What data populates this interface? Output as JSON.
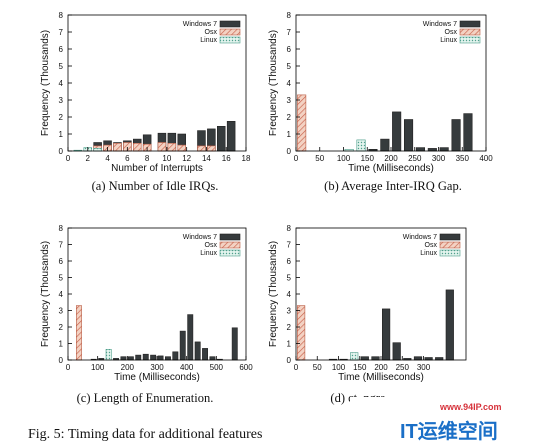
{
  "figure_caption": "Fig. 5: Timing data for additional features",
  "watermark": {
    "url": "www.94IP.com",
    "brand": "IT运维空间"
  },
  "colors": {
    "windows": "#363b3d",
    "osx_fill": "#f3d2c3",
    "osx_stroke": "#c8604a",
    "linux_fill": "#e3f4ee",
    "linux_stroke": "#4f9f8c"
  },
  "chart_data": [
    {
      "type": "bar",
      "caption": "(a) Number of Idle IRQs.",
      "ylabel": "Frequency (Thousands)",
      "xlabel": "Number of Interrupts",
      "ylim": [
        0,
        8
      ],
      "xlim": [
        0,
        18
      ],
      "yticks": [
        "0",
        "1",
        "2",
        "3",
        "4",
        "5",
        "6",
        "7",
        "8"
      ],
      "xticks": [
        "0",
        "2",
        "4",
        "6",
        "8",
        "10",
        "12",
        "14",
        "16",
        "18"
      ],
      "legend": [
        "Windows 7",
        "Osx",
        "Linux"
      ],
      "legend_position": "top-right",
      "series": [
        {
          "name": "Windows 7",
          "points": [
            [
              2,
              0.1
            ],
            [
              3,
              0.5
            ],
            [
              4,
              0.6
            ],
            [
              5,
              0.5
            ],
            [
              6,
              0.6
            ],
            [
              7,
              0.7
            ],
            [
              8,
              0.95
            ],
            [
              9.5,
              1.05
            ],
            [
              10.5,
              1.05
            ],
            [
              11.5,
              1.0
            ],
            [
              13.5,
              1.2
            ],
            [
              14.5,
              1.3
            ],
            [
              15.5,
              1.45
            ],
            [
              16.5,
              1.75
            ]
          ]
        },
        {
          "name": "Osx",
          "points": [
            [
              3,
              0.3
            ],
            [
              4,
              0.35
            ],
            [
              5,
              0.45
            ],
            [
              6,
              0.5
            ],
            [
              7,
              0.45
            ],
            [
              8,
              0.4
            ],
            [
              9.5,
              0.5
            ],
            [
              10.5,
              0.45
            ],
            [
              11.5,
              0.35
            ],
            [
              13.5,
              0.3
            ],
            [
              14.5,
              0.3
            ]
          ]
        },
        {
          "name": "Linux",
          "points": [
            [
              1,
              0.05
            ],
            [
              2,
              0.2
            ],
            [
              3,
              0.15
            ]
          ]
        }
      ]
    },
    {
      "type": "bar",
      "caption": "(b) Average Inter-IRQ Gap.",
      "ylabel": "Frequency (Thousands)",
      "xlabel": "Time (Milliseconds)",
      "ylim": [
        0,
        8
      ],
      "xlim": [
        0,
        400
      ],
      "yticks": [
        "0",
        "1",
        "2",
        "3",
        "4",
        "5",
        "6",
        "7",
        "8"
      ],
      "xticks": [
        "0",
        "50",
        "100",
        "150",
        "200",
        "250",
        "300",
        "350",
        "400"
      ],
      "legend": [
        "Windows 7",
        "Osx",
        "Linux"
      ],
      "legend_position": "top-right",
      "series": [
        {
          "name": "Windows 7",
          "points": [
            [
              162,
              0.1
            ],
            [
              187,
              0.7
            ],
            [
              212,
              2.3
            ],
            [
              237,
              1.85
            ],
            [
              262,
              0.2
            ],
            [
              287,
              0.15
            ],
            [
              312,
              0.2
            ],
            [
              337,
              1.85
            ],
            [
              362,
              2.2
            ]
          ]
        },
        {
          "name": "Osx",
          "points": [
            [
              12,
              3.3
            ]
          ]
        },
        {
          "name": "Linux",
          "points": [
            [
              112,
              0.1
            ],
            [
              137,
              0.65
            ]
          ]
        }
      ]
    },
    {
      "type": "bar",
      "caption": "(c) Length of Enumeration.",
      "ylabel": "Frequency (Thousands)",
      "xlabel": "Time (Milliseconds)",
      "ylim": [
        0,
        8
      ],
      "xlim": [
        0,
        600
      ],
      "yticks": [
        "0",
        "1",
        "2",
        "3",
        "4",
        "5",
        "6",
        "7",
        "8"
      ],
      "xticks": [
        "0",
        "100",
        "200",
        "300",
        "400",
        "500",
        "600"
      ],
      "legend": [
        "Windows 7",
        "Osx",
        "Linux"
      ],
      "legend_position": "top-right",
      "series": [
        {
          "name": "Windows 7",
          "points": [
            [
              87,
              0.05
            ],
            [
              112,
              0.1
            ],
            [
              162,
              0.1
            ],
            [
              187,
              0.2
            ],
            [
              212,
              0.2
            ],
            [
              237,
              0.3
            ],
            [
              262,
              0.35
            ],
            [
              287,
              0.3
            ],
            [
              312,
              0.25
            ],
            [
              337,
              0.2
            ],
            [
              362,
              0.5
            ],
            [
              387,
              1.75
            ],
            [
              412,
              2.75
            ],
            [
              437,
              1.1
            ],
            [
              462,
              0.7
            ],
            [
              487,
              0.2
            ],
            [
              512,
              0.05
            ],
            [
              562,
              1.95
            ]
          ]
        },
        {
          "name": "Osx",
          "points": [
            [
              37,
              3.3
            ]
          ]
        },
        {
          "name": "Linux",
          "points": [
            [
              137,
              0.65
            ]
          ]
        }
      ]
    },
    {
      "type": "bar",
      "caption": "(d) ct_ngra",
      "ylabel": "Frequency (Thousands)",
      "xlabel": "Time (Milliseconds)",
      "ylim": [
        0,
        8
      ],
      "xlim": [
        0,
        400
      ],
      "yticks": [
        "0",
        "1",
        "2",
        "3",
        "4",
        "5",
        "6",
        "7",
        "8"
      ],
      "xticks": [
        "0",
        "50",
        "100",
        "150",
        "200",
        "250",
        "300"
      ],
      "legend": [
        "Windows 7",
        "Osx",
        "Linux"
      ],
      "legend_position": "top-right",
      "series": [
        {
          "name": "Windows 7",
          "points": [
            [
              87,
              0.05
            ],
            [
              112,
              0.05
            ],
            [
              137,
              0.1
            ],
            [
              162,
              0.2
            ],
            [
              187,
              0.2
            ],
            [
              212,
              3.1
            ],
            [
              237,
              1.05
            ],
            [
              262,
              0.1
            ],
            [
              287,
              0.2
            ],
            [
              312,
              0.15
            ],
            [
              337,
              0.15
            ],
            [
              362,
              4.25
            ]
          ]
        },
        {
          "name": "Osx",
          "points": [
            [
              12,
              3.3
            ]
          ]
        },
        {
          "name": "Linux",
          "points": [
            [
              137,
              0.45
            ]
          ]
        }
      ]
    }
  ]
}
